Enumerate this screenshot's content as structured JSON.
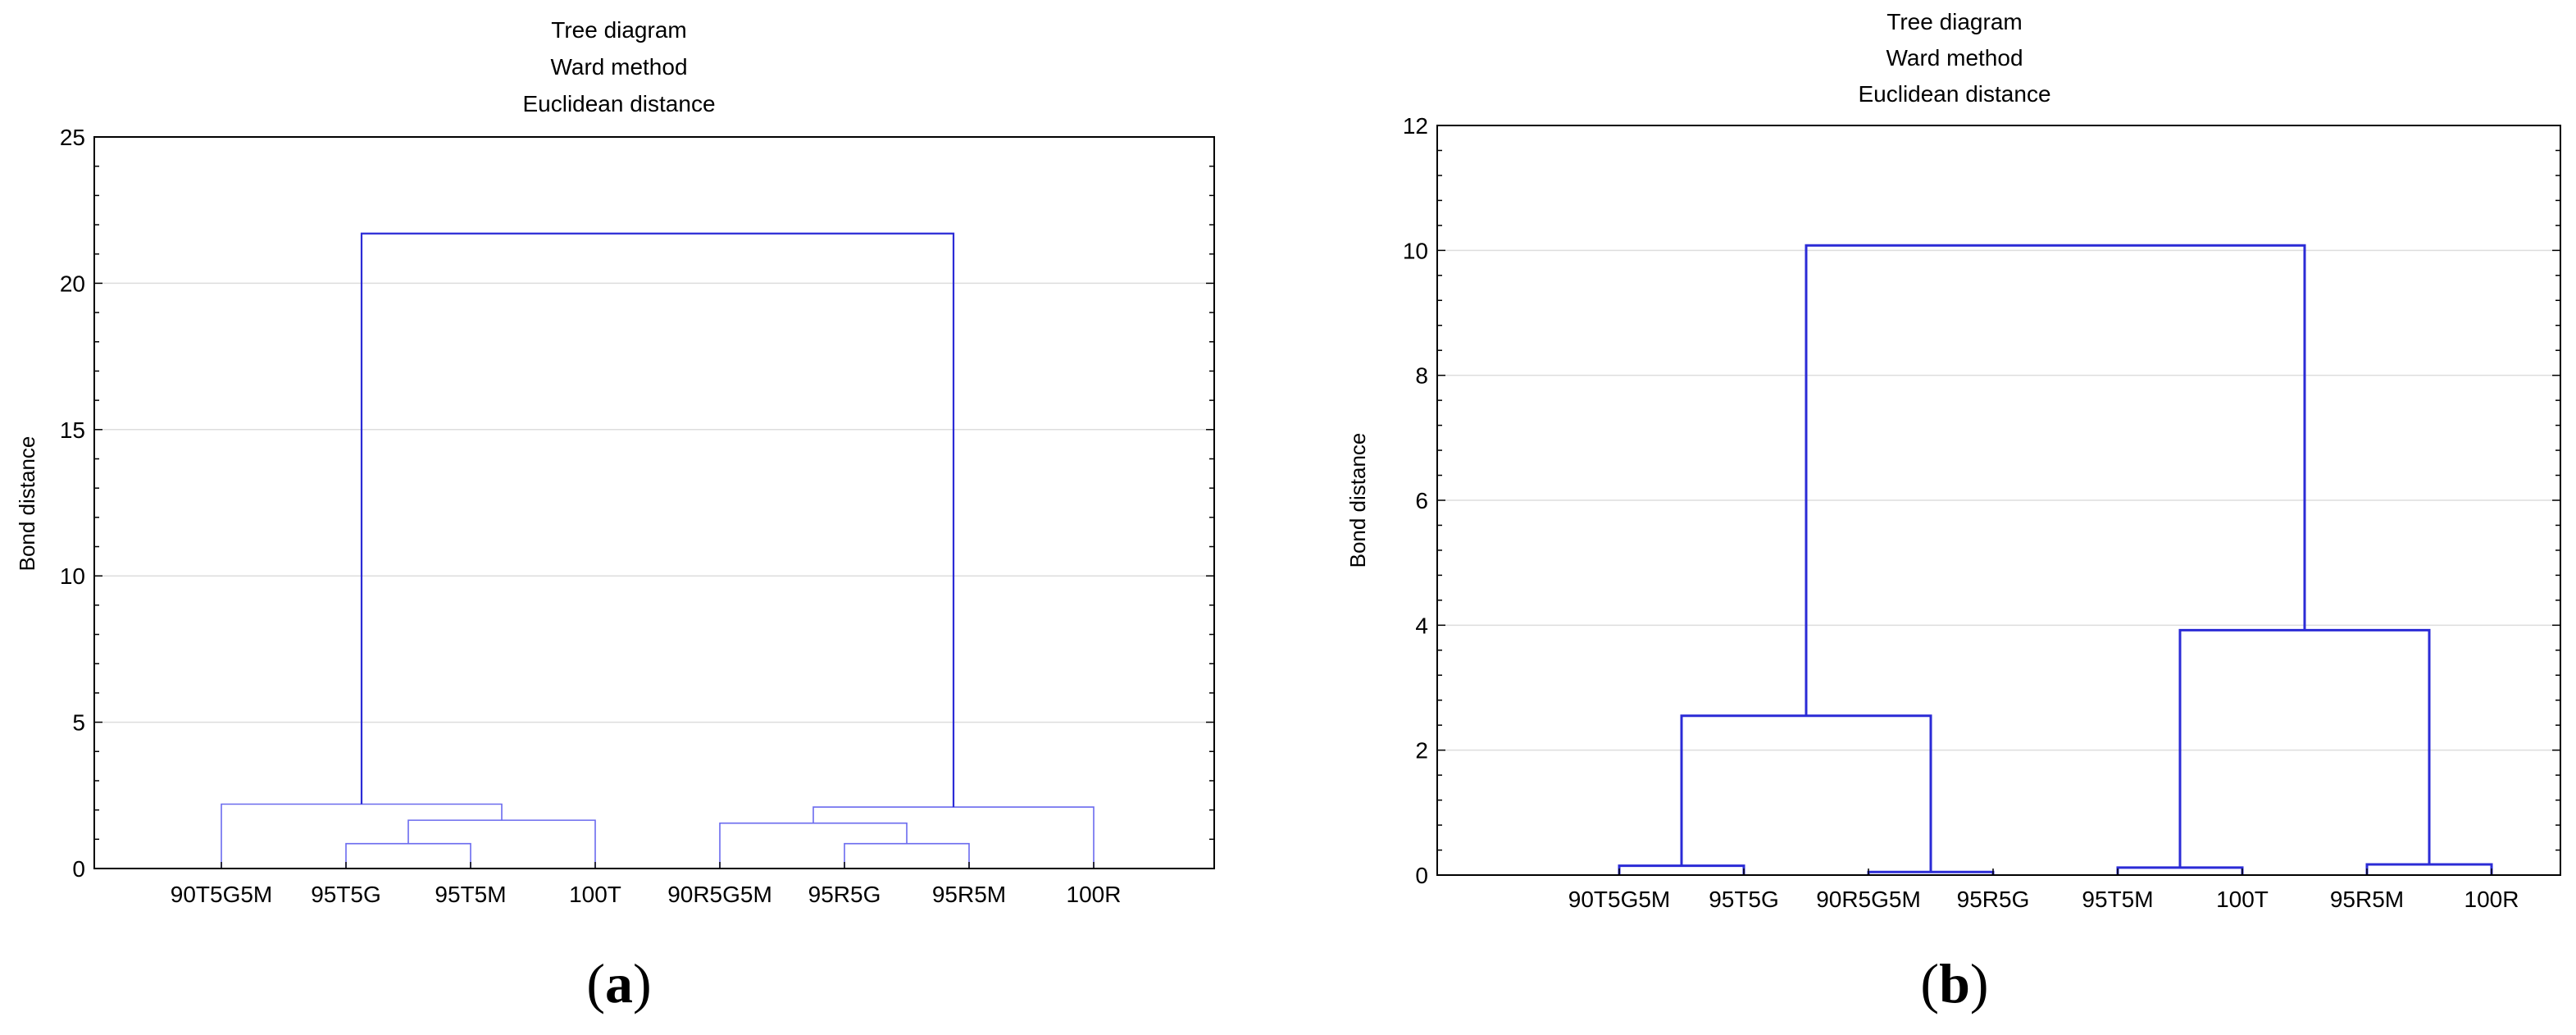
{
  "panels": [
    {
      "label_open": "(",
      "label_letter": "a",
      "label_close": ")",
      "title_lines": [
        "Tree diagram",
        "Ward method",
        "Euclidean distance"
      ]
    },
    {
      "label_open": "(",
      "label_letter": "b",
      "label_close": ")",
      "title_lines": [
        "Tree diagram",
        "Ward method",
        "Euclidean distance"
      ]
    }
  ],
  "colors": {
    "link": "#2b2bd6",
    "link_light": "#6a6aee",
    "grid": "#dddddd",
    "axis": "#000000"
  },
  "chart_data": [
    {
      "type": "dendrogram",
      "title": "Tree diagram",
      "subtitle": [
        "Ward method",
        "Euclidean distance"
      ],
      "xlabel": "",
      "ylabel": "Bond distance",
      "ylim": [
        0,
        25
      ],
      "yticks": [
        0,
        5,
        10,
        15,
        20,
        25
      ],
      "grid": true,
      "leaves": [
        "90T5G5M",
        "95T5G",
        "95T5M",
        "100T",
        "90R5G5M",
        "95R5G",
        "95R5M",
        "100R"
      ],
      "merges": [
        {
          "left": "95T5G",
          "right": "95T5M",
          "height": 0.85
        },
        {
          "left": "95R5G",
          "right": "95R5M",
          "height": 0.85
        },
        {
          "left": "95R5G+95R5M",
          "right": "90R5G5M",
          "height": 1.55
        },
        {
          "left": "95T5G+95T5M",
          "right": "100T",
          "height": 1.65
        },
        {
          "left": "90R5G5M+95R5G+95R5M",
          "right": "100R",
          "height": 2.1
        },
        {
          "left": "90T5G5M",
          "right": "95T5G+95T5M+100T",
          "height": 2.2
        },
        {
          "left": "T-group",
          "right": "R-group",
          "height": 21.7
        }
      ]
    },
    {
      "type": "dendrogram",
      "title": "Tree diagram",
      "subtitle": [
        "Ward method",
        "Euclidean distance"
      ],
      "xlabel": "",
      "ylabel": "Bond distance",
      "ylim": [
        0,
        12
      ],
      "yticks": [
        0,
        2,
        4,
        6,
        8,
        10,
        12
      ],
      "grid": true,
      "leaves": [
        "90T5G5M",
        "95T5G",
        "90R5G5M",
        "95R5G",
        "95T5M",
        "100T",
        "95R5M",
        "100R"
      ],
      "merges": [
        {
          "left": "90T5G5M",
          "right": "95T5G",
          "height": 0.15
        },
        {
          "left": "90R5G5M",
          "right": "95R5G",
          "height": 0.05
        },
        {
          "left": "95T5M",
          "right": "100T",
          "height": 0.12
        },
        {
          "left": "95R5M",
          "right": "100R",
          "height": 0.17
        },
        {
          "left": "90T5G5M+95T5G",
          "right": "90R5G5M+95R5G",
          "height": 2.55
        },
        {
          "left": "95T5M+100T",
          "right": "95R5M+100R",
          "height": 3.92
        },
        {
          "left": "G-group",
          "right": "M-group",
          "height": 10.08
        }
      ]
    }
  ]
}
